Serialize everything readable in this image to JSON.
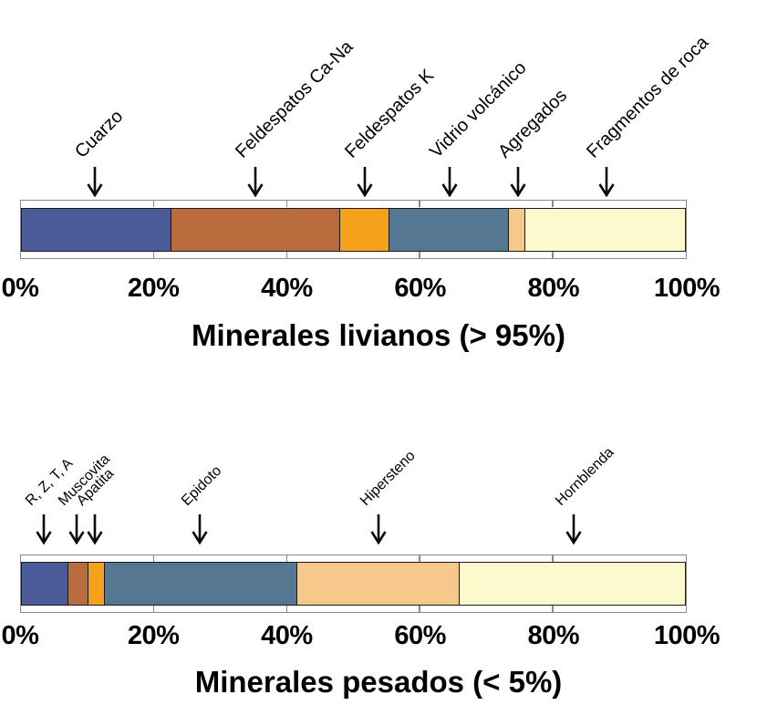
{
  "page": {
    "background": "#ffffff",
    "text_color": "#000000",
    "frame_color": "#8a8a8a",
    "bar_outline_color": "#1a1a1a"
  },
  "icons": {
    "segment_pointer": "down-arrow-icon"
  },
  "chart_data": [
    {
      "type": "bar",
      "orientation": "horizontal-stacked",
      "title": "Minerales livianos (> 95%)",
      "units": "%",
      "xlim": [
        0,
        100
      ],
      "grid": false,
      "legend": "none",
      "axis_tick_positions": [
        0,
        20,
        40,
        60,
        80,
        100
      ],
      "axis_tick_labels": [
        "0%",
        "20%",
        "40%",
        "60%",
        "80%",
        "100%"
      ],
      "segments": [
        {
          "label": "Cuarzo",
          "value": 22.5,
          "color": "#4a5b97"
        },
        {
          "label": "Feldespatos Ca-Na",
          "value": 25.5,
          "color": "#bb6c3e"
        },
        {
          "label": "Feldespatos K",
          "value": 7.5,
          "color": "#f5a11c"
        },
        {
          "label": "Vidrio volcánico",
          "value": 18,
          "color": "#567792"
        },
        {
          "label": "Agregados",
          "value": 2.5,
          "color": "#f6c88b"
        },
        {
          "label": "Fragmentos de roca",
          "value": 24,
          "color": "#fbf9cd"
        }
      ]
    },
    {
      "type": "bar",
      "orientation": "horizontal-stacked",
      "title": "Minerales pesados (< 5%)",
      "units": "%",
      "xlim": [
        0,
        100
      ],
      "grid": false,
      "legend": "none",
      "axis_tick_positions": [
        0,
        20,
        40,
        60,
        80,
        100
      ],
      "axis_tick_labels": [
        "0%",
        "20%",
        "40%",
        "60%",
        "80%",
        "100%"
      ],
      "segments": [
        {
          "label": "R, Z, T, A",
          "value": 7,
          "color": "#4a5b97"
        },
        {
          "label": "Muscovita",
          "value": 3,
          "color": "#bb6c3e"
        },
        {
          "label": "Apatita",
          "value": 2.5,
          "color": "#f5a11c"
        },
        {
          "label": "Epidoto",
          "value": 29,
          "color": "#567792"
        },
        {
          "label": "Hipersteno",
          "value": 24.5,
          "color": "#f6c88b"
        },
        {
          "label": "Hornblenda",
          "value": 34,
          "color": "#fbf9cd"
        }
      ]
    }
  ]
}
